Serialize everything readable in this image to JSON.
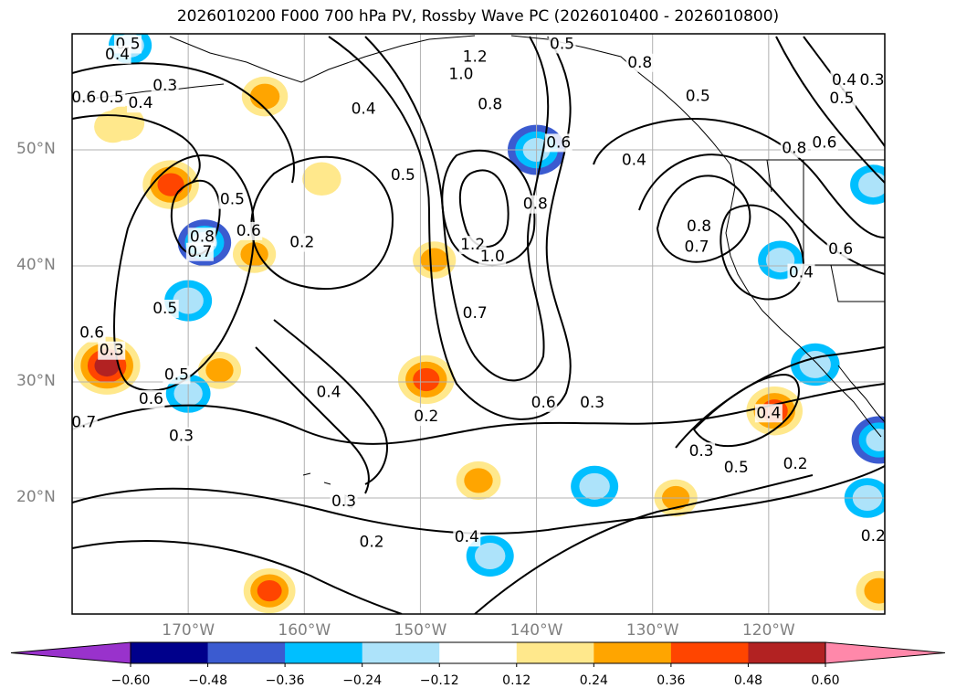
{
  "title": "2026010200 F000 700 hPa PV, Rossby Wave PC (2026010400 - 2026010800)",
  "map": {
    "latitudes": [
      {
        "label": "50°N",
        "value": 50
      },
      {
        "label": "40°N",
        "value": 40
      },
      {
        "label": "30°N",
        "value": 30
      },
      {
        "label": "20°N",
        "value": 20
      }
    ],
    "longitudes": [
      {
        "label": "170°W",
        "value": -170
      },
      {
        "label": "160°W",
        "value": -160
      },
      {
        "label": "150°W",
        "value": -150
      },
      {
        "label": "140°W",
        "value": -140
      },
      {
        "label": "130°W",
        "value": -130
      },
      {
        "label": "120°W",
        "value": -120
      }
    ],
    "extent": {
      "lon_min": -180,
      "lon_max": -110,
      "lat_min": 10,
      "lat_max": 60
    }
  },
  "contour_labels": [
    {
      "text": "0.5",
      "lon": -175.2,
      "lat": 59.1
    },
    {
      "text": "0.4",
      "lon": -176.1,
      "lat": 58.2
    },
    {
      "text": "0.6",
      "lon": -179.0,
      "lat": 54.5
    },
    {
      "text": "0.5",
      "lon": -176.6,
      "lat": 54.5
    },
    {
      "text": "0.4",
      "lon": -174.1,
      "lat": 54.0
    },
    {
      "text": "0.3",
      "lon": -172.0,
      "lat": 55.5
    },
    {
      "text": "1.2",
      "lon": -145.3,
      "lat": 58.0
    },
    {
      "text": "1.0",
      "lon": -146.5,
      "lat": 56.5
    },
    {
      "text": "0.8",
      "lon": -144.0,
      "lat": 53.9
    },
    {
      "text": "0.4",
      "lon": -154.9,
      "lat": 53.5
    },
    {
      "text": "0.5",
      "lon": -137.8,
      "lat": 59.1
    },
    {
      "text": "0.8",
      "lon": -131.1,
      "lat": 57.5
    },
    {
      "text": "0.5",
      "lon": -126.1,
      "lat": 54.6
    },
    {
      "text": "0.6",
      "lon": -138.1,
      "lat": 50.6
    },
    {
      "text": "0.4",
      "lon": -131.6,
      "lat": 49.1
    },
    {
      "text": "0.8",
      "lon": -140.1,
      "lat": 45.3
    },
    {
      "text": "0.5",
      "lon": -151.5,
      "lat": 47.8
    },
    {
      "text": "0.4",
      "lon": -113.5,
      "lat": 56.0
    },
    {
      "text": "0.5",
      "lon": -113.7,
      "lat": 54.4
    },
    {
      "text": "0.3",
      "lon": -111.1,
      "lat": 56.0
    },
    {
      "text": "0.6",
      "lon": -115.2,
      "lat": 50.6
    },
    {
      "text": "0.8",
      "lon": -117.8,
      "lat": 50.1
    },
    {
      "text": "0.8",
      "lon": -126.0,
      "lat": 43.4
    },
    {
      "text": "0.7",
      "lon": -126.2,
      "lat": 41.6
    },
    {
      "text": "0.6",
      "lon": -113.8,
      "lat": 41.4
    },
    {
      "text": "0.4",
      "lon": -117.2,
      "lat": 39.4
    },
    {
      "text": "0.8",
      "lon": -168.8,
      "lat": 42.5
    },
    {
      "text": "0.7",
      "lon": -169.0,
      "lat": 41.2
    },
    {
      "text": "0.5",
      "lon": -166.2,
      "lat": 45.7
    },
    {
      "text": "0.6",
      "lon": -164.8,
      "lat": 43.0
    },
    {
      "text": "0.2",
      "lon": -160.2,
      "lat": 42.0
    },
    {
      "text": "1.2",
      "lon": -145.5,
      "lat": 41.8
    },
    {
      "text": "1.0",
      "lon": -143.8,
      "lat": 40.8
    },
    {
      "text": "0.7",
      "lon": -145.3,
      "lat": 35.9
    },
    {
      "text": "0.5",
      "lon": -172.0,
      "lat": 36.3
    },
    {
      "text": "0.6",
      "lon": -178.3,
      "lat": 34.2
    },
    {
      "text": "0.3",
      "lon": -176.6,
      "lat": 32.7
    },
    {
      "text": "0.5",
      "lon": -171.0,
      "lat": 30.6
    },
    {
      "text": "0.6",
      "lon": -173.2,
      "lat": 28.5
    },
    {
      "text": "0.4",
      "lon": -157.9,
      "lat": 29.1
    },
    {
      "text": "0.2",
      "lon": -149.5,
      "lat": 27.0
    },
    {
      "text": "0.6",
      "lon": -139.4,
      "lat": 28.2
    },
    {
      "text": "0.3",
      "lon": -135.2,
      "lat": 28.2
    },
    {
      "text": "0.7",
      "lon": -179.0,
      "lat": 26.5
    },
    {
      "text": "0.3",
      "lon": -170.6,
      "lat": 25.3
    },
    {
      "text": "0.4",
      "lon": -120.0,
      "lat": 27.3
    },
    {
      "text": "0.3",
      "lon": -125.8,
      "lat": 24.0
    },
    {
      "text": "0.5",
      "lon": -122.8,
      "lat": 22.6
    },
    {
      "text": "0.2",
      "lon": -117.7,
      "lat": 22.9
    },
    {
      "text": "0.2",
      "lon": -111.0,
      "lat": 16.7
    },
    {
      "text": "0.3",
      "lon": -156.6,
      "lat": 19.7
    },
    {
      "text": "0.2",
      "lon": -154.2,
      "lat": 16.2
    },
    {
      "text": "0.4",
      "lon": -146.0,
      "lat": 16.6
    }
  ],
  "anomaly_patches": [
    {
      "lon": -158.5,
      "lat": 47.5,
      "value": 0.18
    },
    {
      "lon": -163.4,
      "lat": 54.6,
      "value": 0.28
    },
    {
      "lon": -171.5,
      "lat": 47.0,
      "value": 0.42
    },
    {
      "lon": -175.5,
      "lat": 52.3,
      "value": 0.2
    },
    {
      "lon": -168.6,
      "lat": 42.0,
      "value": -0.38
    },
    {
      "lon": -170.0,
      "lat": 37.0,
      "value": -0.3
    },
    {
      "lon": -164.3,
      "lat": 41.0,
      "value": 0.24
    },
    {
      "lon": -177.0,
      "lat": 31.4,
      "value": 0.56
    },
    {
      "lon": -167.3,
      "lat": 31.0,
      "value": 0.24
    },
    {
      "lon": -170.0,
      "lat": 29.0,
      "value": -0.26
    },
    {
      "lon": -149.5,
      "lat": 30.2,
      "value": 0.42
    },
    {
      "lon": -148.8,
      "lat": 40.5,
      "value": 0.24
    },
    {
      "lon": -140.0,
      "lat": 50.0,
      "value": -0.44
    },
    {
      "lon": -145.0,
      "lat": 21.5,
      "value": 0.26
    },
    {
      "lon": -135.0,
      "lat": 21.0,
      "value": -0.3
    },
    {
      "lon": -128.0,
      "lat": 20.0,
      "value": 0.24
    },
    {
      "lon": -163.0,
      "lat": 12.0,
      "value": 0.36
    },
    {
      "lon": -144.0,
      "lat": 15.0,
      "value": -0.3
    },
    {
      "lon": -119.5,
      "lat": 27.5,
      "value": 0.42
    },
    {
      "lon": -116.0,
      "lat": 31.5,
      "value": -0.32
    },
    {
      "lon": -119.0,
      "lat": 40.5,
      "value": -0.26
    },
    {
      "lon": -111.0,
      "lat": 47.0,
      "value": -0.28
    },
    {
      "lon": -111.5,
      "lat": 20.0,
      "value": -0.28
    },
    {
      "lon": -110.5,
      "lat": 25.0,
      "value": -0.4
    },
    {
      "lon": -110.5,
      "lat": 12.0,
      "value": 0.28
    },
    {
      "lon": -176.5,
      "lat": 52.0,
      "value": 0.16
    },
    {
      "lon": -175.0,
      "lat": 59.0,
      "value": -0.24
    }
  ],
  "colorbar": {
    "ticks": [
      "−0.60",
      "−0.48",
      "−0.36",
      "−0.24",
      "−0.12",
      "0.12",
      "0.24",
      "0.36",
      "0.48",
      "0.60"
    ],
    "levels": [
      -0.6,
      -0.48,
      -0.36,
      -0.24,
      -0.12,
      0.12,
      0.24,
      0.36,
      0.48,
      0.6
    ],
    "colors": [
      "#9932CC",
      "#00008B",
      "#3B5BD0",
      "#00BFFF",
      "#ADE3FA",
      "#FFFFFF",
      "#FFE88C",
      "#FFA500",
      "#FF4500",
      "#B22222",
      "#FF88AA"
    ]
  }
}
